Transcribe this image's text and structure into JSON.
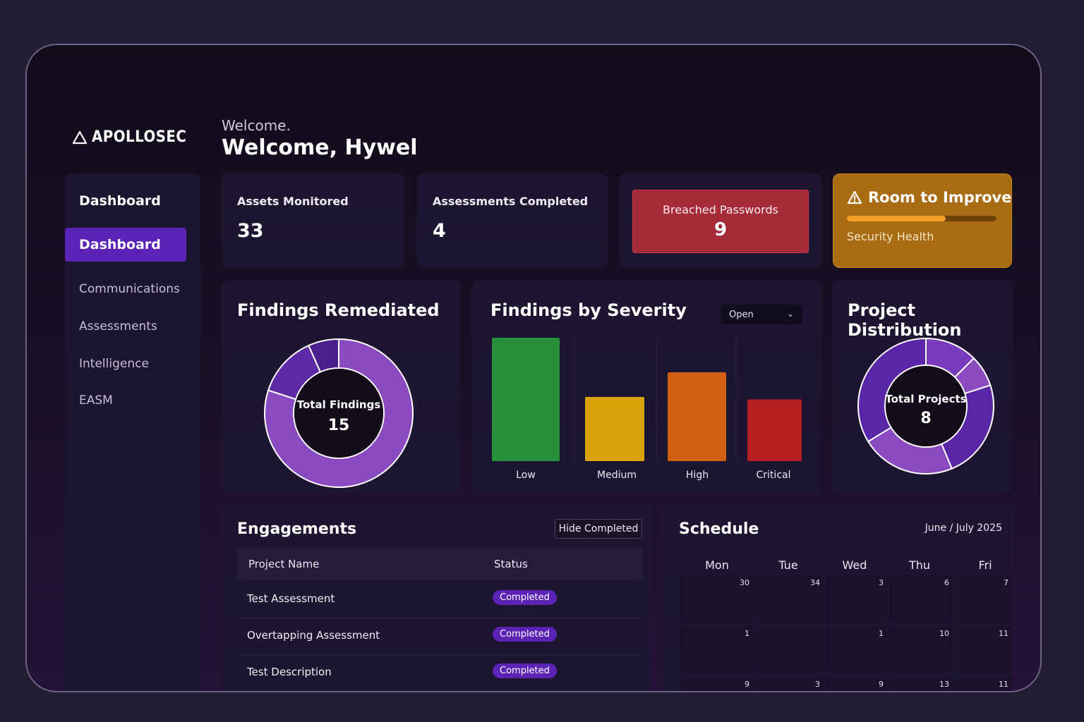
{
  "app": {
    "brand": "APOLLOSEC"
  },
  "header": {
    "greeting_small": "Welcome.",
    "greeting_big": "Welcome, Hywel"
  },
  "sidebar": {
    "heading": "Dashboard",
    "items": [
      {
        "label": "Dashboard",
        "active": true
      },
      {
        "label": "Communications"
      },
      {
        "label": "Assessments"
      },
      {
        "label": "Intelligence"
      },
      {
        "label": "EASM"
      }
    ]
  },
  "stats": {
    "assets": {
      "label": "Assets Monitored",
      "value": "33"
    },
    "assessments": {
      "label": "Assessments Completed",
      "value": "4"
    },
    "breached": {
      "label": "Breached Passwords",
      "value": "9"
    },
    "improve": {
      "title": "Room to Improve",
      "subtitle": "Security Health",
      "level": 0.66
    }
  },
  "findings_remediated": {
    "title": "Findings Remediated",
    "center_label": "Total Findings",
    "center_value": "15",
    "chart_data": {
      "type": "pie",
      "slices": [
        {
          "value": 12,
          "color": "#8a4bc0"
        },
        {
          "value": 2,
          "color": "#5e2aa6"
        },
        {
          "value": 1,
          "color": "#4a1e8c"
        }
      ]
    }
  },
  "findings_severity": {
    "title": "Findings by Severity",
    "filter_value": "Open",
    "chart_data": {
      "type": "bar",
      "categories": [
        "Low",
        "Medium",
        "High",
        "Critical"
      ],
      "values": [
        100,
        52,
        72,
        50
      ],
      "colors": [
        "#26903a",
        "#d9a30a",
        "#d05f12",
        "#b51f1f"
      ]
    }
  },
  "project_distribution": {
    "title": "Project Distribution",
    "center_label": "Total Projects",
    "center_value": "8",
    "chart_data": {
      "type": "pie",
      "slices": [
        {
          "value": 1,
          "color": "#7b3bbf"
        },
        {
          "value": 0.6,
          "color": "#8a4bc0"
        },
        {
          "value": 1.9,
          "color": "#5b25a8"
        },
        {
          "value": 1.8,
          "color": "#8a4bc0"
        },
        {
          "value": 2.7,
          "color": "#5b25a8"
        }
      ]
    }
  },
  "engagements": {
    "title": "Engagements",
    "hide_button": "Hide Completed",
    "columns": [
      "Project Name",
      "Status"
    ],
    "rows": [
      {
        "name": "Test Assessment",
        "status": "Completed"
      },
      {
        "name": "Overtapping Assessment",
        "status": "Completed"
      },
      {
        "name": "Test Description",
        "status": "Completed"
      }
    ]
  },
  "schedule": {
    "title": "Schedule",
    "range": "June / July 2025",
    "days": [
      "Mon",
      "Tue",
      "Wed",
      "Thu",
      "Fri"
    ],
    "weeks": [
      [
        "30",
        "34",
        "3",
        "6",
        "7"
      ],
      [
        "1",
        "",
        "1",
        "10",
        "11"
      ],
      [
        "9",
        "3",
        "9",
        "13",
        "11"
      ]
    ]
  }
}
